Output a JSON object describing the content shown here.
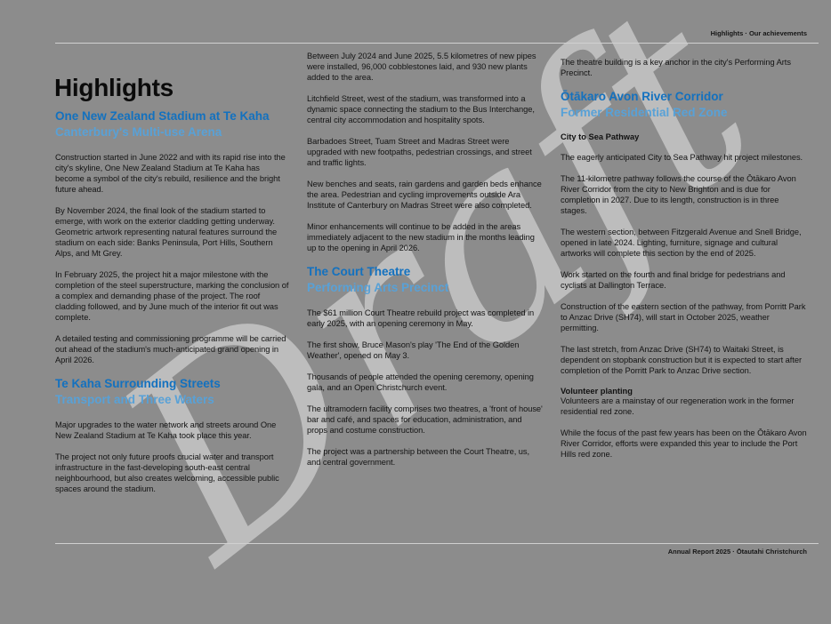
{
  "page": {
    "header": "Highlights · Our achievements",
    "footer": "Annual Report 2025 · Ōtautahi Christchurch",
    "title": "Highlights",
    "watermark": "Draft"
  },
  "colors": {
    "background": "#8c8c8c",
    "heading_blue": "#1371bf",
    "subheading_blue": "#58a1d7",
    "watermark_gray": "#bdbdbd"
  },
  "columns": [
    {
      "blocks": [
        {
          "kind": "heading",
          "title": "One New Zealand Stadium at Te Kaha",
          "subtitle": "Canterbury's Multi-use Arena"
        },
        {
          "kind": "para",
          "text": "Construction started in June 2022 and with its rapid rise into the city's skyline, One New Zealand Stadium at Te Kaha has become a symbol of the city's rebuild, resilience and the bright future ahead."
        },
        {
          "kind": "para",
          "text": "By November 2024, the final look of the stadium started to emerge, with work on the exterior cladding getting underway. Geometric artwork representing natural features surround the stadium on each side: Banks Peninsula, Port Hills, Southern Alps, and Mt Grey."
        },
        {
          "kind": "para",
          "text": "In February 2025, the project hit a major milestone with the completion of the steel superstructure, marking the conclusion of a complex and demanding phase of the project. The roof cladding followed, and by June much of the interior fit out was complete."
        },
        {
          "kind": "para",
          "text": "A detailed testing and commissioning programme will be carried out ahead of the stadium's much-anticipated grand opening in April 2026."
        },
        {
          "kind": "heading",
          "title": "Te Kaha Surrounding Streets",
          "subtitle": "Transport and Three Waters"
        },
        {
          "kind": "para",
          "text": "Major upgrades to the water network and streets around One New Zealand Stadium at Te Kaha took place this year."
        },
        {
          "kind": "para",
          "text": "The project not only future proofs crucial water and transport infrastructure in the fast-developing south-east central neighbourhood, but also creates welcoming, accessible public spaces around the stadium."
        }
      ]
    },
    {
      "blocks": [
        {
          "kind": "para",
          "text": "Between July 2024 and June 2025, 5.5 kilometres of new pipes were installed, 96,000 cobblestones laid, and 930 new plants added to the area."
        },
        {
          "kind": "para",
          "text": "Litchfield Street, west of the stadium, was transformed into a dynamic space connecting the stadium to the Bus Interchange, central city accommodation and hospitality spots."
        },
        {
          "kind": "para",
          "text": "Barbadoes Street, Tuam Street and Madras Street were upgraded with new footpaths, pedestrian crossings, and street and traffic lights."
        },
        {
          "kind": "para",
          "text": "New benches and seats, rain gardens and garden beds enhance the area. Pedestrian and cycling improvements outside Ara Institute of Canterbury on Madras Street were also completed."
        },
        {
          "kind": "para",
          "text": "Minor enhancements will continue to be added in the areas immediately adjacent to the new stadium in the months leading up to the opening in April 2026."
        },
        {
          "kind": "heading",
          "title": "The Court Theatre",
          "subtitle": "Performing Arts Precinct"
        },
        {
          "kind": "para",
          "text": "The $61 million Court Theatre rebuild project was completed in early 2025, with an opening ceremony in May."
        },
        {
          "kind": "para",
          "text": "The first show, Bruce Mason's play 'The End of the Golden Weather', opened on May 3."
        },
        {
          "kind": "para",
          "text": "Thousands of people attended the opening ceremony, opening gala, and an Open Christchurch event."
        },
        {
          "kind": "para",
          "text": "The ultramodern facility comprises two theatres, a 'front of house' bar and café, and spaces for education, administration, and props and costume construction."
        },
        {
          "kind": "para",
          "text": "The project was a partnership between the Court Theatre, us, and central government."
        }
      ]
    },
    {
      "blocks": [
        {
          "kind": "para",
          "text": "The theatre building is a key anchor in the city's Performing Arts Precinct."
        },
        {
          "kind": "heading",
          "title": "Ōtākaro Avon River Corridor",
          "subtitle": "Former Residential Red Zone"
        },
        {
          "kind": "mini",
          "text": "City to Sea Pathway"
        },
        {
          "kind": "para",
          "text": "The eagerly anticipated City to Sea Pathway hit project milestones."
        },
        {
          "kind": "para",
          "text": "The 11-kilometre pathway follows the course of the Ōtākaro Avon River Corridor from the city to New Brighton and is due for completion in 2027. Due to its length, construction is in three stages."
        },
        {
          "kind": "para",
          "text": "The western section, between Fitzgerald Avenue and Snell Bridge, opened in late 2024. Lighting, furniture, signage and cultural artworks will complete this section by the end of 2025."
        },
        {
          "kind": "para",
          "text": "Work started on the fourth and final bridge for pedestrians and cyclists at Dallington Terrace."
        },
        {
          "kind": "para",
          "text": "Construction of the eastern section of the pathway, from Porritt Park to Anzac Drive (SH74), will start in October 2025, weather permitting."
        },
        {
          "kind": "para",
          "text": "The last stretch, from Anzac Drive (SH74) to Waitaki Street, is dependent on stopbank construction but it is expected to start after completion of the Porritt Park to Anzac Drive section."
        },
        {
          "kind": "mini-tight",
          "text": "Volunteer planting"
        },
        {
          "kind": "para",
          "text": "Volunteers are a mainstay of our regeneration work in the former residential red zone."
        },
        {
          "kind": "para",
          "text": "While the focus of the past few years has been on the Ōtākaro Avon River Corridor, efforts were expanded this year to include the Port Hills red zone."
        }
      ]
    }
  ]
}
